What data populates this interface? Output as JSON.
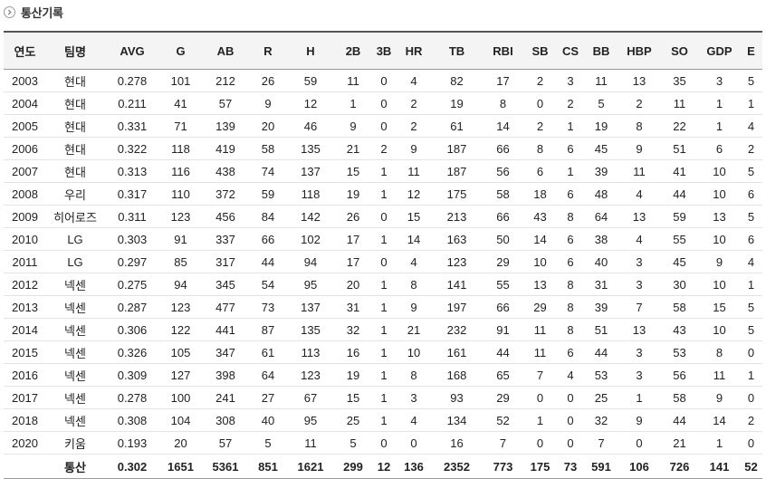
{
  "section": {
    "title": "통산기록",
    "icon": "chevron-right-circle-icon"
  },
  "columns": [
    "연도",
    "팀명",
    "AVG",
    "G",
    "AB",
    "R",
    "H",
    "2B",
    "3B",
    "HR",
    "TB",
    "RBI",
    "SB",
    "CS",
    "BB",
    "HBP",
    "SO",
    "GDP",
    "E"
  ],
  "rows": [
    [
      "2003",
      "현대",
      "0.278",
      "101",
      "212",
      "26",
      "59",
      "11",
      "0",
      "4",
      "82",
      "17",
      "2",
      "3",
      "11",
      "13",
      "35",
      "3",
      "5"
    ],
    [
      "2004",
      "현대",
      "0.211",
      "41",
      "57",
      "9",
      "12",
      "1",
      "0",
      "2",
      "19",
      "8",
      "0",
      "2",
      "5",
      "2",
      "11",
      "1",
      "1"
    ],
    [
      "2005",
      "현대",
      "0.331",
      "71",
      "139",
      "20",
      "46",
      "9",
      "0",
      "2",
      "61",
      "14",
      "2",
      "1",
      "19",
      "8",
      "22",
      "1",
      "4"
    ],
    [
      "2006",
      "현대",
      "0.322",
      "118",
      "419",
      "58",
      "135",
      "21",
      "2",
      "9",
      "187",
      "66",
      "8",
      "6",
      "45",
      "9",
      "51",
      "6",
      "2"
    ],
    [
      "2007",
      "현대",
      "0.313",
      "116",
      "438",
      "74",
      "137",
      "15",
      "1",
      "11",
      "187",
      "56",
      "6",
      "1",
      "39",
      "11",
      "41",
      "10",
      "5"
    ],
    [
      "2008",
      "우리",
      "0.317",
      "110",
      "372",
      "59",
      "118",
      "19",
      "1",
      "12",
      "175",
      "58",
      "18",
      "6",
      "48",
      "4",
      "44",
      "10",
      "6"
    ],
    [
      "2009",
      "히어로즈",
      "0.311",
      "123",
      "456",
      "84",
      "142",
      "26",
      "0",
      "15",
      "213",
      "66",
      "43",
      "8",
      "64",
      "13",
      "59",
      "13",
      "5"
    ],
    [
      "2010",
      "LG",
      "0.303",
      "91",
      "337",
      "66",
      "102",
      "17",
      "1",
      "14",
      "163",
      "50",
      "14",
      "6",
      "38",
      "4",
      "55",
      "10",
      "6"
    ],
    [
      "2011",
      "LG",
      "0.297",
      "85",
      "317",
      "44",
      "94",
      "17",
      "0",
      "4",
      "123",
      "29",
      "10",
      "6",
      "40",
      "3",
      "45",
      "9",
      "4"
    ],
    [
      "2012",
      "넥센",
      "0.275",
      "94",
      "345",
      "54",
      "95",
      "20",
      "1",
      "8",
      "141",
      "55",
      "13",
      "8",
      "31",
      "3",
      "30",
      "10",
      "1"
    ],
    [
      "2013",
      "넥센",
      "0.287",
      "123",
      "477",
      "73",
      "137",
      "31",
      "1",
      "9",
      "197",
      "66",
      "29",
      "8",
      "39",
      "7",
      "58",
      "15",
      "5"
    ],
    [
      "2014",
      "넥센",
      "0.306",
      "122",
      "441",
      "87",
      "135",
      "32",
      "1",
      "21",
      "232",
      "91",
      "11",
      "8",
      "51",
      "13",
      "43",
      "10",
      "5"
    ],
    [
      "2015",
      "넥센",
      "0.326",
      "105",
      "347",
      "61",
      "113",
      "16",
      "1",
      "10",
      "161",
      "44",
      "11",
      "6",
      "44",
      "3",
      "53",
      "8",
      "0"
    ],
    [
      "2016",
      "넥센",
      "0.309",
      "127",
      "398",
      "64",
      "123",
      "19",
      "1",
      "8",
      "168",
      "65",
      "7",
      "4",
      "53",
      "3",
      "56",
      "11",
      "1"
    ],
    [
      "2017",
      "넥센",
      "0.278",
      "100",
      "241",
      "27",
      "67",
      "15",
      "1",
      "3",
      "93",
      "29",
      "0",
      "0",
      "25",
      "1",
      "58",
      "9",
      "0"
    ],
    [
      "2018",
      "넥센",
      "0.308",
      "104",
      "308",
      "40",
      "95",
      "25",
      "1",
      "4",
      "134",
      "52",
      "1",
      "0",
      "32",
      "9",
      "44",
      "14",
      "2"
    ],
    [
      "2020",
      "키움",
      "0.193",
      "20",
      "57",
      "5",
      "11",
      "5",
      "0",
      "0",
      "16",
      "7",
      "0",
      "0",
      "7",
      "0",
      "21",
      "1",
      "0"
    ]
  ],
  "total": [
    "",
    "통산",
    "0.302",
    "1651",
    "5361",
    "851",
    "1621",
    "299",
    "12",
    "136",
    "2352",
    "773",
    "175",
    "73",
    "591",
    "106",
    "726",
    "141",
    "52"
  ],
  "colors": {
    "header_bg": "#f4f4f4",
    "header_border": "#555555",
    "row_border": "#e3e3e3"
  }
}
